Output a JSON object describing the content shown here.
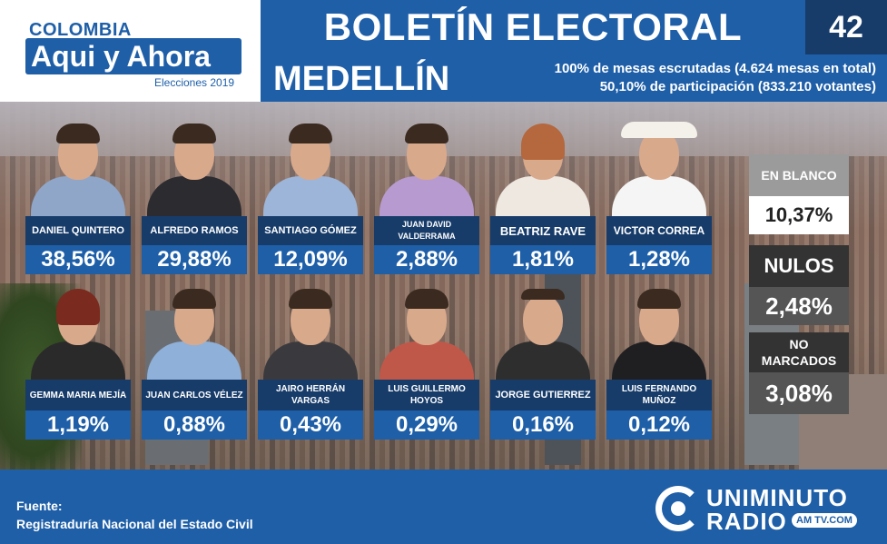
{
  "header": {
    "logo_top": "COLOMBIA",
    "logo_main": "Aqui y Ahora",
    "logo_sub": "Elecciones 2019",
    "title": "BOLETÍN ELECTORAL",
    "bulletin_number": "42",
    "city": "MEDELLÍN",
    "stat_line1": "100% de mesas escrutadas (4.624 mesas en total)",
    "stat_line2": "50,10% de participación (833.210 votantes)"
  },
  "candidates_row1": [
    {
      "name": "DANIEL QUINTERO",
      "pct": "38,56%",
      "shirt": "#8fa6c9"
    },
    {
      "name": "ALFREDO RAMOS",
      "pct": "29,88%",
      "shirt": "#2b2b30"
    },
    {
      "name": "SANTIAGO GÓMEZ",
      "pct": "12,09%",
      "shirt": "#9db5d8"
    },
    {
      "name": "JUAN DAVID VALDERRAMA",
      "pct": "2,88%",
      "shirt": "#b79bd0"
    },
    {
      "name": "BEATRIZ RAVE",
      "pct": "1,81%",
      "shirt": "#efe8e0"
    },
    {
      "name": "VICTOR CORREA",
      "pct": "1,28%",
      "shirt": "#f5f5f5"
    }
  ],
  "candidates_row2": [
    {
      "name": "GEMMA MARIA MEJÍA",
      "pct": "1,19%",
      "shirt": "#2a2a2a"
    },
    {
      "name": "JUAN CARLOS VÉLEZ",
      "pct": "0,88%",
      "shirt": "#8fb0d8"
    },
    {
      "name": "JAIRO HERRÁN VARGAS",
      "pct": "0,43%",
      "shirt": "#3a3a3e"
    },
    {
      "name": "LUIS GUILLERMO HOYOS",
      "pct": "0,29%",
      "shirt": "#c0584a"
    },
    {
      "name": "JORGE GUTIERREZ",
      "pct": "0,16%",
      "shirt": "#2e2e2e"
    },
    {
      "name": "LUIS FERNANDO MUÑOZ",
      "pct": "0,12%",
      "shirt": "#1f1f22"
    }
  ],
  "side_stats": {
    "blank_label": "EN BLANCO",
    "blank_value": "10,37%",
    "null_label": "NULOS",
    "null_value": "2,48%",
    "unmarked_label": "NO MARCADOS",
    "unmarked_value": "3,08%"
  },
  "footer": {
    "source_label": "Fuente:",
    "source_text": "Registraduría Nacional del Estado Civil",
    "radio_top": "UNIMINUTO",
    "radio_bottom": "RADIO",
    "radio_tag": "AM TV.COM"
  },
  "colors": {
    "primary_blue": "#1e5fa8",
    "dark_blue": "#173c6a",
    "grey_box": "#9b9b9b",
    "dark_box": "#333333",
    "white": "#ffffff"
  }
}
